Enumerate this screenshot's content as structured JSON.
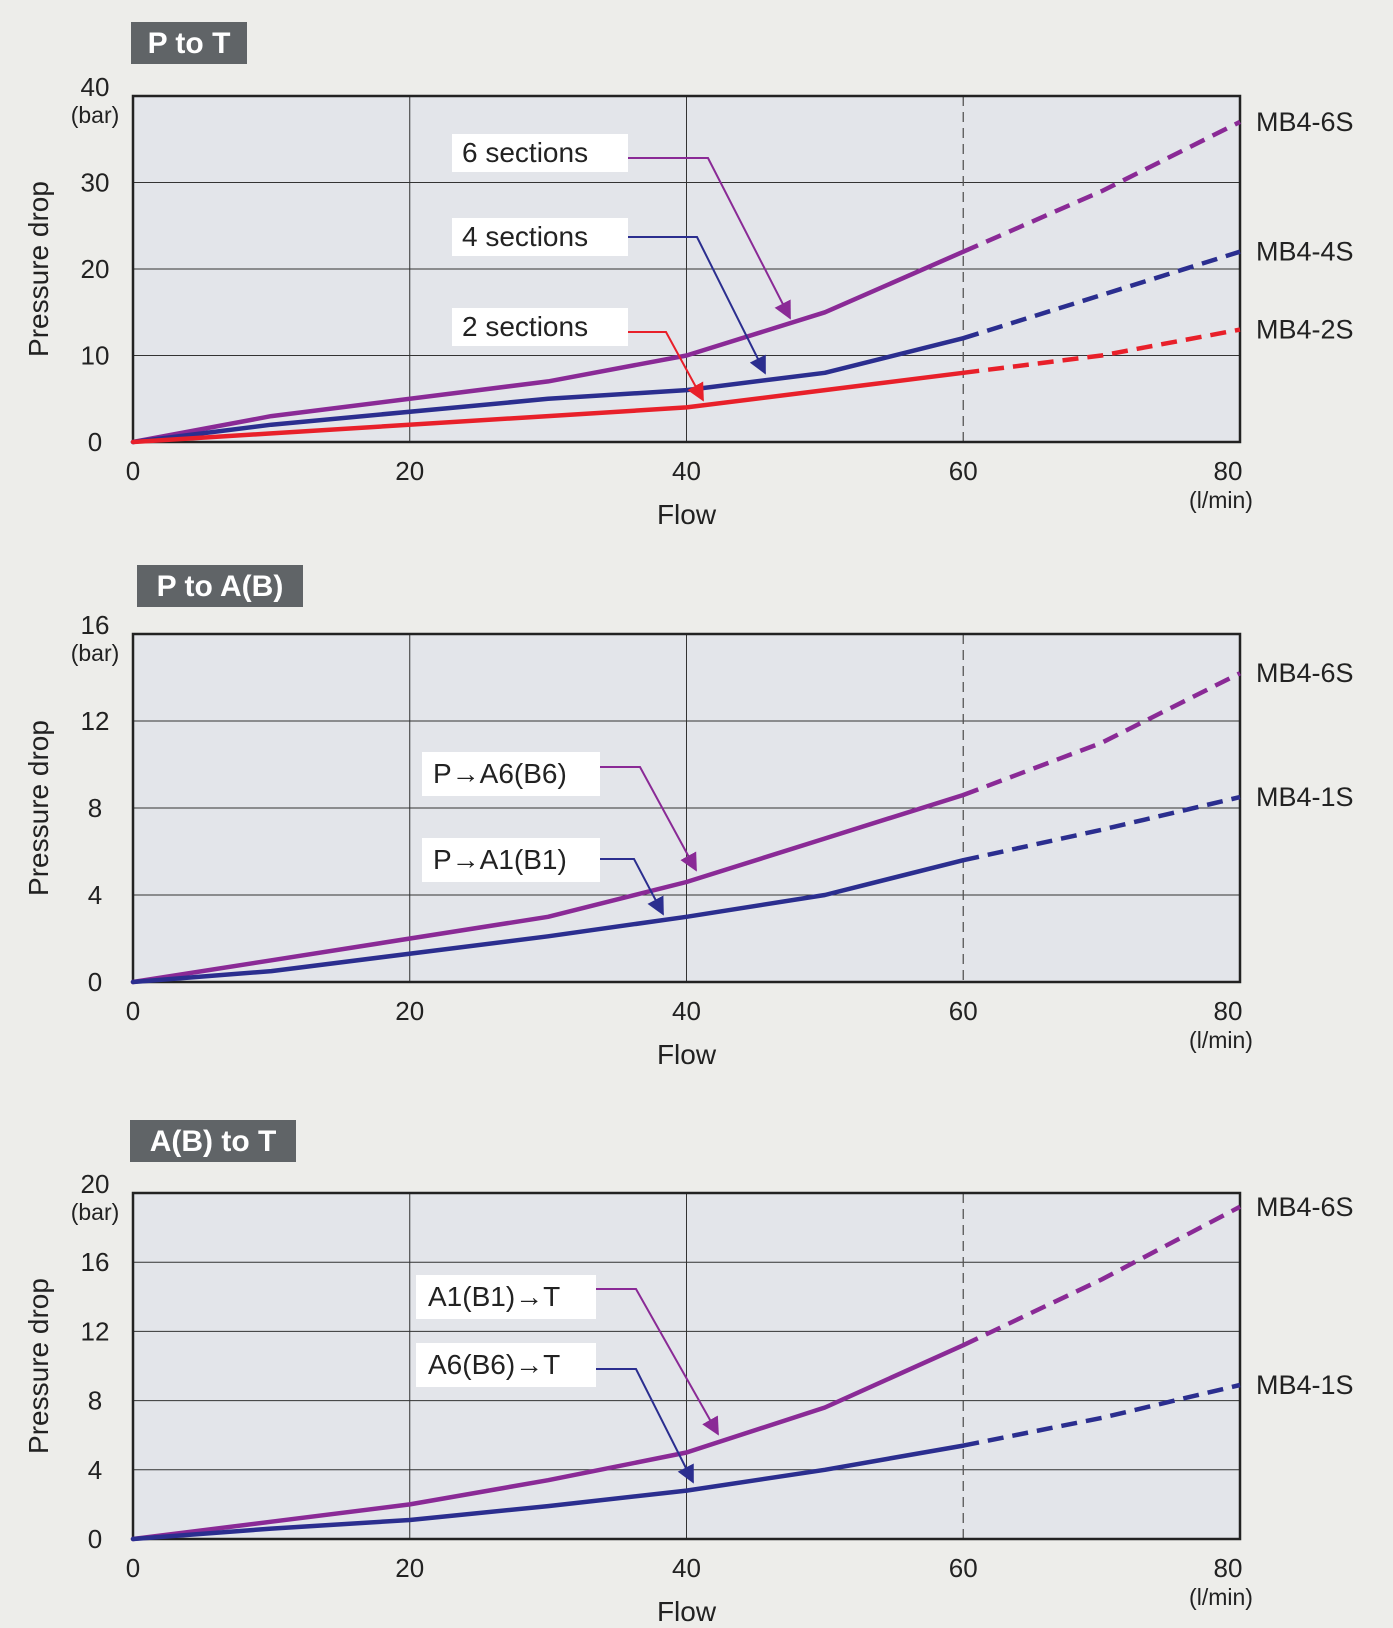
{
  "chart_data": [
    {
      "type": "line",
      "title": "P to T",
      "xlabel": "Flow",
      "x_unit": "(l/min)",
      "ylabel": "Pressure drop",
      "y_unit": "(bar)",
      "xlim": [
        0,
        80
      ],
      "ylim": [
        0,
        40
      ],
      "x_ticks": [
        "0",
        "20",
        "40",
        "60",
        "80"
      ],
      "y_ticks": [
        "0",
        "10",
        "20",
        "30",
        "40"
      ],
      "y_tick_values": [
        0,
        10,
        20,
        30,
        40
      ],
      "grid": true,
      "dashed_from_x": 60,
      "series": [
        {
          "name": "MB4-6S",
          "color": "#8a2a96",
          "x": [
            0,
            10,
            30,
            40,
            50,
            60,
            70,
            80
          ],
          "y": [
            0,
            3,
            7,
            10,
            15,
            22,
            29,
            37
          ]
        },
        {
          "name": "MB4-4S",
          "color": "#2b2e8f",
          "x": [
            0,
            10,
            30,
            40,
            50,
            60,
            70,
            80
          ],
          "y": [
            0,
            2,
            5,
            6,
            8,
            12,
            17,
            22
          ]
        },
        {
          "name": "MB4-2S",
          "color": "#e8202a",
          "x": [
            0,
            10,
            30,
            40,
            50,
            60,
            70,
            80
          ],
          "y": [
            0,
            1,
            3,
            4,
            6,
            8,
            10,
            13
          ]
        }
      ],
      "annotations": [
        {
          "text": "6 sections",
          "color": "#8a2a96"
        },
        {
          "text": "4 sections",
          "color": "#2b2e8f"
        },
        {
          "text": "2 sections",
          "color": "#e8202a"
        }
      ]
    },
    {
      "type": "line",
      "title": "P to A(B)",
      "xlabel": "Flow",
      "x_unit": "(l/min)",
      "ylabel": "Pressure drop",
      "y_unit": "(bar)",
      "xlim": [
        0,
        80
      ],
      "ylim": [
        0,
        16
      ],
      "x_ticks": [
        "0",
        "20",
        "40",
        "60",
        "80"
      ],
      "y_ticks": [
        "0",
        "4",
        "8",
        "12",
        "16"
      ],
      "y_tick_values": [
        0,
        4,
        8,
        12,
        16
      ],
      "grid": true,
      "dashed_from_x": 60,
      "series": [
        {
          "name": "MB4-6S",
          "color": "#8a2a96",
          "x": [
            0,
            10,
            30,
            40,
            50,
            60,
            70,
            80
          ],
          "y": [
            0,
            1,
            3,
            4.6,
            6.6,
            8.6,
            11,
            14.2
          ]
        },
        {
          "name": "MB4-1S",
          "color": "#2b2e8f",
          "x": [
            0,
            10,
            30,
            40,
            50,
            60,
            70,
            80
          ],
          "y": [
            0,
            0.5,
            2.1,
            3,
            4,
            5.6,
            7,
            8.5
          ]
        }
      ],
      "annotations": [
        {
          "text": "P→A6(B6)",
          "color": "#8a2a96"
        },
        {
          "text": "P→A1(B1)",
          "color": "#2b2e8f"
        }
      ]
    },
    {
      "type": "line",
      "title": "A(B) to T",
      "xlabel": "Flow",
      "x_unit": "(l/min)",
      "ylabel": "Pressure drop",
      "y_unit": "(bar)",
      "xlim": [
        0,
        80
      ],
      "ylim": [
        0,
        20
      ],
      "x_ticks": [
        "0",
        "20",
        "40",
        "60",
        "80"
      ],
      "y_ticks": [
        "0",
        "4",
        "8",
        "12",
        "16",
        "20"
      ],
      "y_tick_values": [
        0,
        4,
        8,
        12,
        16,
        20
      ],
      "grid": true,
      "dashed_from_x": 60,
      "series": [
        {
          "name": "MB4-6S",
          "color": "#8a2a96",
          "x": [
            0,
            10,
            20,
            30,
            40,
            50,
            60,
            70,
            80
          ],
          "y": [
            0,
            1,
            2,
            3.4,
            5,
            7.6,
            11.2,
            15,
            19.2
          ]
        },
        {
          "name": "MB4-1S",
          "color": "#2b2e8f",
          "x": [
            0,
            10,
            20,
            30,
            40,
            50,
            60,
            70,
            80
          ],
          "y": [
            0,
            0.6,
            1.1,
            1.9,
            2.8,
            4,
            5.4,
            7,
            8.9
          ]
        }
      ],
      "annotations": [
        {
          "text": "A1(B1)→T",
          "color": "#8a2a96"
        },
        {
          "text": "A6(B6)→T",
          "color": "#2b2e8f"
        }
      ]
    }
  ]
}
